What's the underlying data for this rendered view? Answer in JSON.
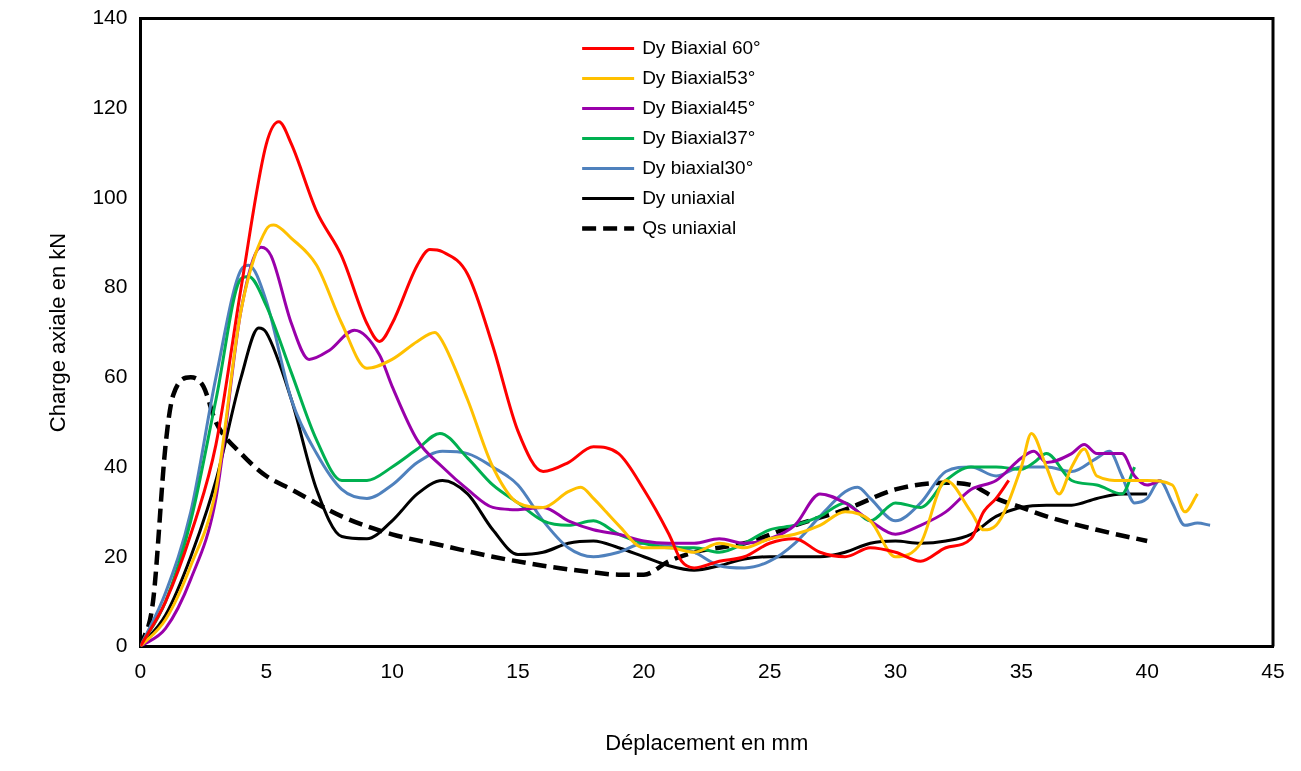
{
  "chart_data": {
    "type": "line",
    "xlabel": "Déplacement en mm",
    "ylabel": "Charge axiale en kN",
    "xlim": [
      0,
      45
    ],
    "xticks": [
      0,
      5,
      10,
      15,
      20,
      25,
      30,
      35,
      40,
      45
    ],
    "ylim": [
      0,
      140
    ],
    "yticks": [
      0,
      20,
      40,
      60,
      80,
      100,
      120,
      140
    ],
    "grid": false,
    "legend": "top center",
    "marker": "none",
    "series": [
      {
        "name": "Dy Biaxial 60°",
        "color": "#ff0000",
        "line_style": "solid",
        "x": [
          0,
          1,
          2,
          3,
          4,
          5,
          5.5,
          6,
          7,
          8,
          9,
          9.5,
          10,
          11,
          11.5,
          12,
          13,
          14,
          15,
          16,
          17,
          18,
          19,
          20,
          21,
          21.5,
          22,
          23,
          24,
          25,
          26,
          27,
          28,
          29,
          30,
          31,
          32,
          33,
          33.5,
          34,
          34.5
        ],
        "values": [
          0,
          10,
          25,
          45,
          80,
          112,
          117,
          112,
          97,
          87,
          72,
          68,
          72,
          85,
          88.5,
          88,
          83,
          67,
          48,
          39,
          41,
          44.5,
          43,
          35,
          25,
          19,
          17.5,
          19,
          20,
          23,
          24,
          21,
          20,
          22,
          21,
          19,
          22,
          24,
          30,
          33,
          37
        ]
      },
      {
        "name": "Dy Biaxial53°",
        "color": "#ffc000",
        "line_style": "solid",
        "x": [
          0,
          1,
          2,
          3,
          4,
          5,
          5.3,
          6,
          7,
          8,
          9,
          10,
          11,
          11.7,
          12,
          13,
          14,
          15,
          16,
          17,
          17.5,
          18,
          19,
          20,
          21,
          22,
          23,
          24,
          25,
          26,
          27,
          28,
          29,
          30,
          31,
          32,
          33,
          33.5,
          34,
          35,
          35.4,
          36,
          36.5,
          37,
          37.5,
          38,
          39,
          40,
          41,
          41.5,
          42
        ],
        "values": [
          0,
          6,
          18,
          35,
          75,
          93,
          94,
          91,
          85,
          72,
          62,
          64,
          68,
          70,
          68,
          55,
          40,
          32,
          31,
          34.5,
          35.5,
          33,
          27,
          22,
          22,
          21,
          23,
          22,
          24,
          25,
          27,
          30,
          28,
          20,
          23,
          37,
          30,
          26,
          27,
          40,
          47.5,
          40,
          34,
          40,
          44,
          38,
          37,
          37,
          36,
          30,
          34
        ]
      },
      {
        "name": "Dy Biaxial45°",
        "color": "#9900aa",
        "line_style": "solid",
        "x": [
          0,
          1,
          2,
          3,
          4,
          4.8,
          5.2,
          6,
          6.7,
          7.5,
          8.5,
          9.5,
          10,
          11,
          12,
          13,
          14,
          15,
          16,
          17,
          18,
          19,
          20,
          21,
          22,
          23,
          24,
          25,
          26,
          27,
          28,
          29,
          30,
          31,
          32,
          33,
          34,
          35,
          35.5,
          36,
          37,
          37.5,
          38,
          39,
          39.5,
          40,
          40.5
        ],
        "values": [
          0,
          4,
          15,
          33,
          75,
          89,
          87,
          72,
          64,
          66,
          70.5,
          65,
          58,
          46,
          40,
          35,
          31,
          30.5,
          31,
          28,
          26,
          25,
          23.5,
          23,
          23,
          24,
          23,
          24,
          27,
          34,
          32,
          28,
          25,
          27,
          30,
          35,
          37,
          42,
          43.5,
          41,
          43,
          45,
          43,
          43,
          38,
          36,
          37
        ]
      },
      {
        "name": "Dy Biaxial37°",
        "color": "#00b050",
        "line_style": "solid",
        "x": [
          0,
          1,
          2,
          3,
          4,
          4.3,
          5,
          6,
          7,
          8,
          9,
          10,
          11,
          11.9,
          13,
          14,
          15,
          16,
          17,
          18,
          19,
          20,
          21,
          22,
          23,
          24,
          25,
          26,
          27,
          28,
          29,
          30,
          31,
          32,
          33,
          34,
          35,
          35.5,
          36,
          37,
          38,
          39,
          39.5
        ],
        "values": [
          0,
          10,
          28,
          55,
          82,
          82.5,
          76,
          61,
          46,
          37,
          37,
          40,
          44,
          47.5,
          42,
          36,
          32,
          28,
          27,
          28,
          25,
          23,
          22,
          22,
          21,
          23,
          26,
          27,
          29,
          32,
          28,
          32,
          31,
          37,
          40,
          40,
          39.5,
          41,
          43,
          37,
          36,
          34,
          40
        ]
      },
      {
        "name": "Dy biaxial30°",
        "color": "#4f81bd",
        "line_style": "solid",
        "x": [
          0,
          1,
          2,
          3,
          4,
          4.3,
          5,
          6,
          7,
          8,
          9,
          10,
          11,
          12,
          13,
          14,
          15,
          16,
          17,
          18,
          19,
          20,
          21,
          22,
          23,
          24,
          25,
          26,
          27,
          28,
          28.5,
          29,
          30,
          31,
          32,
          33,
          34,
          35,
          36,
          37,
          38,
          38.5,
          39,
          39.5,
          40,
          40.5,
          41,
          41.5,
          42,
          42.5
        ],
        "values": [
          0,
          12,
          30,
          60,
          84,
          85,
          77,
          55,
          43,
          35,
          33,
          36,
          41,
          43.5,
          43,
          40,
          36,
          28,
          22,
          20,
          21,
          23,
          22.5,
          21,
          18,
          17.5,
          19,
          23,
          29,
          34.5,
          35.5,
          33,
          28,
          32,
          39,
          40,
          38,
          40,
          40,
          39,
          42,
          43.5,
          38,
          32,
          33,
          37,
          32,
          27,
          27.5,
          27
        ]
      },
      {
        "name": "Dy uniaxial",
        "color": "#000000",
        "line_style": "solid",
        "x": [
          0,
          1,
          2,
          3,
          4,
          4.7,
          5,
          6,
          7,
          8,
          9,
          10,
          11,
          12,
          13,
          14,
          15,
          16,
          17,
          18,
          19,
          20,
          21,
          22,
          23,
          24,
          25,
          26,
          27,
          28,
          29,
          30,
          31,
          32,
          33,
          34,
          35,
          36,
          37,
          38,
          39,
          40
        ],
        "values": [
          0,
          7,
          20,
          37,
          60,
          71,
          70,
          55,
          35,
          24.5,
          24,
          28,
          34,
          37,
          34,
          26,
          20.5,
          21,
          23,
          23.5,
          22,
          20,
          18,
          17,
          18,
          19.5,
          20,
          20,
          20,
          21,
          23,
          23.5,
          23,
          23.5,
          25,
          29,
          31,
          31.5,
          31.5,
          33,
          34,
          34
        ]
      },
      {
        "name": "Qs uniaxial",
        "color": "#000000",
        "line_style": "dashed",
        "x": [
          0,
          0.5,
          1,
          1.3,
          2,
          2.5,
          3,
          4,
          5,
          6,
          8,
          10,
          12,
          14,
          16,
          18,
          19,
          20,
          21,
          22,
          24,
          26,
          28,
          30,
          32,
          33,
          34,
          35,
          36,
          38,
          40
        ],
        "values": [
          0,
          10,
          45,
          56,
          60,
          58,
          50,
          43,
          38,
          35,
          29,
          25,
          22.5,
          20,
          18,
          16.5,
          16,
          16,
          19,
          21,
          23,
          27,
          30.5,
          35,
          36.5,
          36,
          33,
          31,
          29,
          26,
          23.5
        ]
      }
    ]
  }
}
